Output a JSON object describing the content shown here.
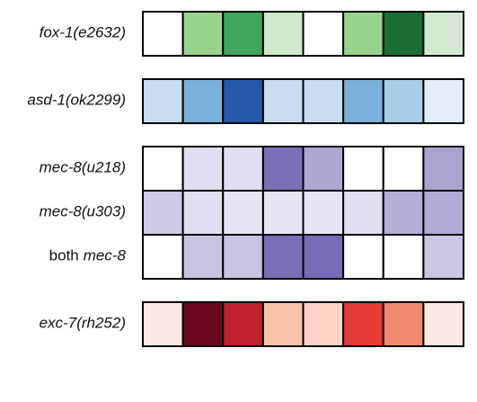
{
  "groups": [
    {
      "rows": [
        {
          "label": [
            {
              "text": "fox-1(e2632)",
              "italic": true
            }
          ],
          "cells": [
            "#ffffff",
            "#98d38e",
            "#41a85b",
            "#cfe9cb",
            "#ffffff",
            "#98d38e",
            "#1d6e35",
            "#d3ead0"
          ]
        }
      ]
    },
    {
      "rows": [
        {
          "label": [
            {
              "text": "asd-1(ok2299)",
              "italic": true
            }
          ],
          "cells": [
            "#c9dcf0",
            "#7cb0dc",
            "#2659a7",
            "#cadcf0",
            "#cadcf0",
            "#7cb0dc",
            "#a9cde6",
            "#e3eef8"
          ]
        }
      ]
    },
    {
      "rows": [
        {
          "label": [
            {
              "text": "mec-8(u218)",
              "italic": true
            }
          ],
          "cells": [
            "#ffffff",
            "#e0def0",
            "#e0def0",
            "#7d6eb8",
            "#ada7d2",
            "#ffffff",
            "#ffffff",
            "#aaa5d0"
          ]
        },
        {
          "label": [
            {
              "text": "mec-8(u303)",
              "italic": true
            }
          ],
          "cells": [
            "#cdcbe6",
            "#e0def0",
            "#e6e5f3",
            "#e6e5f3",
            "#e6e5f3",
            "#e0def0",
            "#b4afd7",
            "#b1acd5"
          ]
        },
        {
          "label": [
            {
              "text": "both",
              "italic": false
            },
            {
              "text": "mec-8",
              "italic": true
            }
          ],
          "cells": [
            "#ffffff",
            "#c8c4e2",
            "#c8c4e2",
            "#7d6eb8",
            "#7a6bb8",
            "#ffffff",
            "#ffffff",
            "#cac7e3"
          ]
        }
      ]
    },
    {
      "rows": [
        {
          "label": [
            {
              "text": "exc-7(rh252)",
              "italic": true
            }
          ],
          "cells": [
            "#fde9df",
            "#6a0a1c",
            "#c1202e",
            "#f8c3a9",
            "#fcd3c4",
            "#e53a35",
            "#f08b6f",
            "#fde9df"
          ]
        }
      ]
    }
  ]
}
